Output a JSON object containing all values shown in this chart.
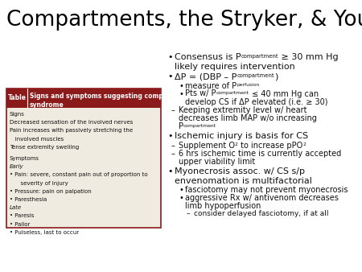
{
  "title": "Compartments, the Stryker, & You",
  "bg_color": "#ffffff",
  "title_color": "#000000",
  "table_header_bg": "#8B1A1A",
  "table_body_bg": "#F0EBE0",
  "table_border_color": "#8B1A1A",
  "table_items": [
    {
      "text": "Signs",
      "italic": false
    },
    {
      "text": "Decreased sensation of the involved nerves",
      "italic": false
    },
    {
      "text": "Pain increases with passively stretching the",
      "italic": false
    },
    {
      "text": "   involved muscles",
      "italic": false
    },
    {
      "text": "Tense extremity swelling",
      "italic": false
    },
    {
      "text": "",
      "italic": false
    },
    {
      "text": "Symptoms",
      "italic": false
    },
    {
      "text": "Early",
      "italic": true
    },
    {
      "text": "• Pain: severe, constant pain out of proportion to",
      "italic": false
    },
    {
      "text": "      severity of injury",
      "italic": false
    },
    {
      "text": "• Pressure: pain on palpation",
      "italic": false
    },
    {
      "text": "• Paresthesia",
      "italic": false
    },
    {
      "text": "Late",
      "italic": true
    },
    {
      "text": "• Paresis",
      "italic": false
    },
    {
      "text": "• Pallor",
      "italic": false
    },
    {
      "text": "• Pulseless, last to occur",
      "italic": false
    }
  ]
}
